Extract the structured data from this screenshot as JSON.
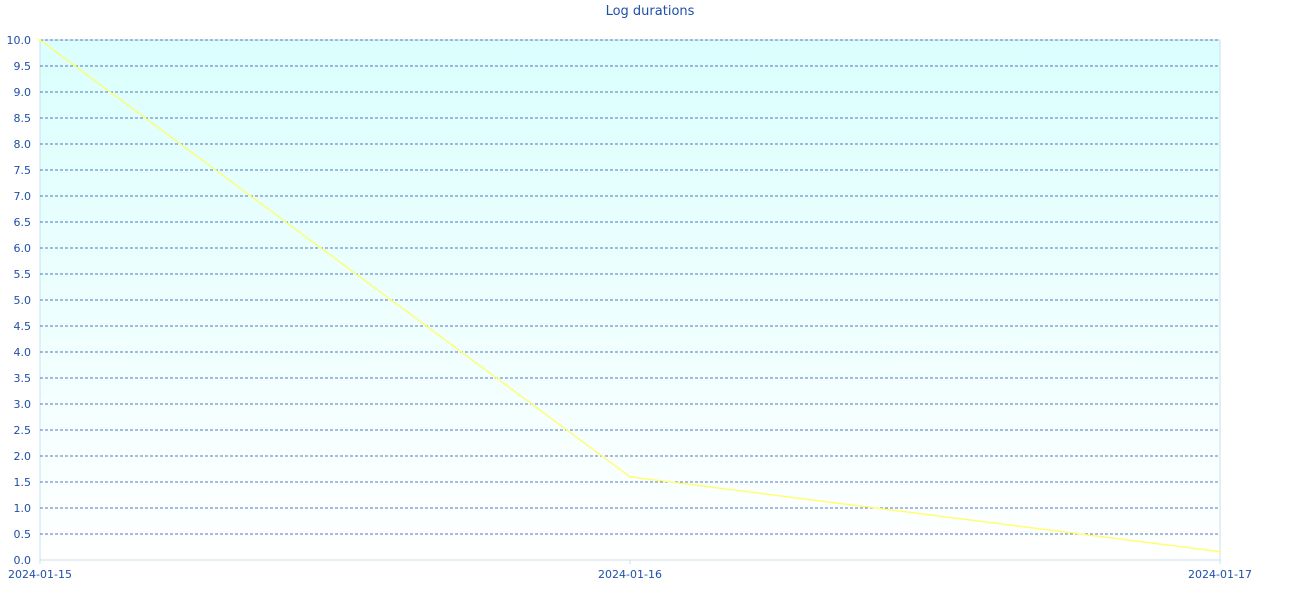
{
  "chart_data": {
    "type": "line",
    "title": "Log durations",
    "xlabel": "",
    "ylabel": "",
    "x_ticks": [
      "2024-01-15",
      "2024-01-16",
      "2024-01-17"
    ],
    "ylim": [
      0,
      10
    ],
    "y_ticks": [
      "0.0",
      "0.5",
      "1.0",
      "1.5",
      "2.0",
      "2.5",
      "3.0",
      "3.5",
      "4.0",
      "4.5",
      "5.0",
      "5.5",
      "6.0",
      "6.5",
      "7.0",
      "7.5",
      "8.0",
      "8.5",
      "9.0",
      "9.5",
      "10.0"
    ],
    "grid": true,
    "series": [
      {
        "x": [
          "2024-01-15",
          "2024-01-16",
          "2024-01-17"
        ],
        "y": [
          10.0,
          1.6,
          0.16
        ]
      }
    ],
    "colors": {
      "line": "#ffff66",
      "text": "#1f4fa8",
      "grid": "#1f4fa8",
      "bg_top": "#dafffe",
      "bg_bottom": "#ffffff",
      "axis": "#c8e0ec"
    }
  }
}
